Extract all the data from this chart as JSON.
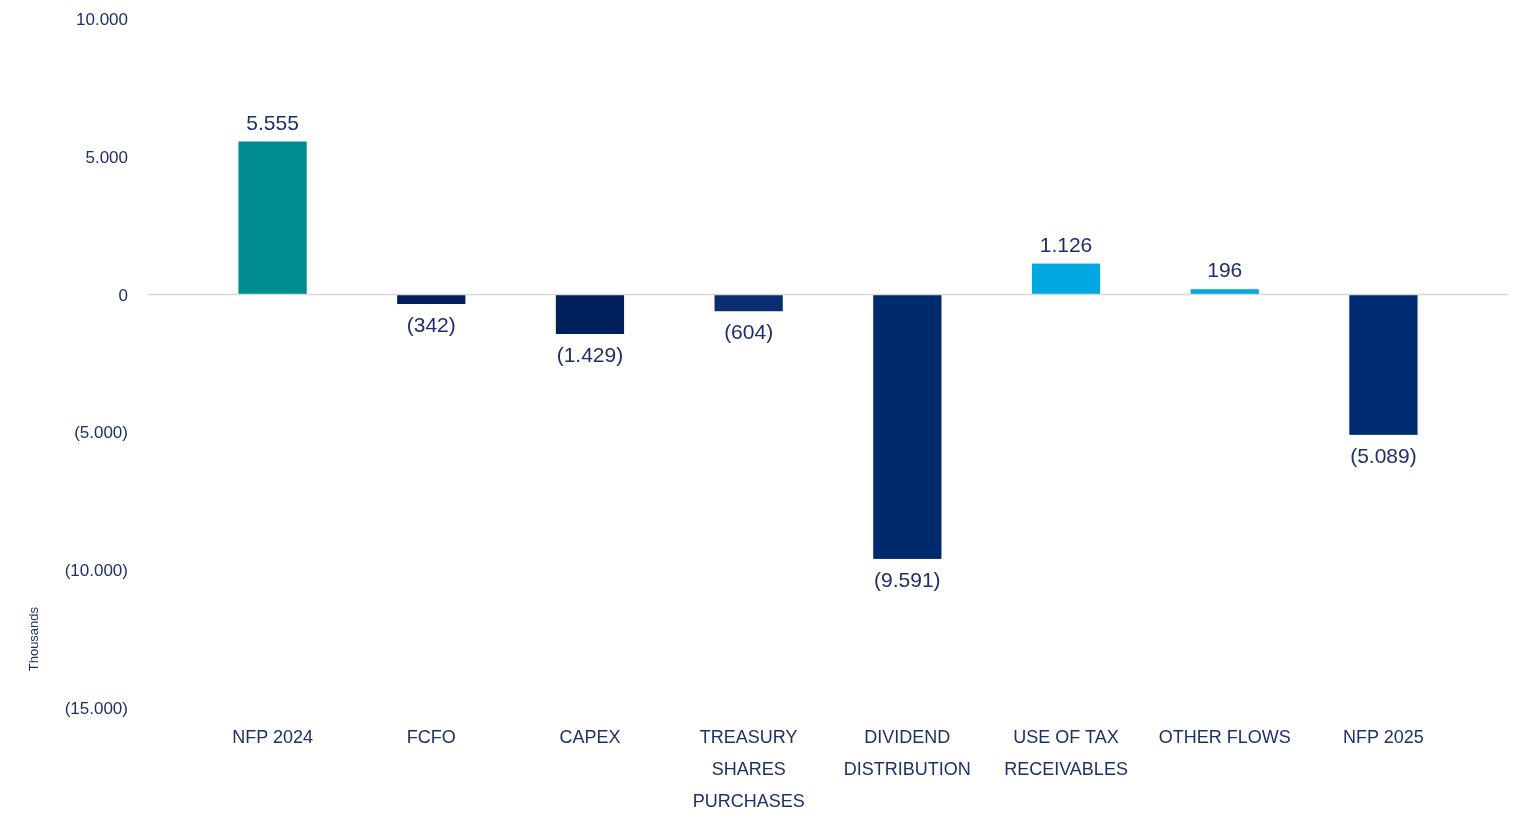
{
  "chart_data": {
    "type": "bar",
    "ylabel": "Thousands",
    "categories": [
      "NFP 2024",
      "FCFO",
      "CAPEX",
      "TREASURY SHARES PURCHASES",
      "DIVIDEND DISTRIBUTION",
      "USE OF TAX RECEIVABLES",
      "OTHER FLOWS",
      "NFP 2025"
    ],
    "values": [
      5555,
      -342,
      -1429,
      -604,
      -9591,
      1126,
      196,
      -5089
    ],
    "colors": [
      "#008b8f",
      "#00205b",
      "#00205b",
      "#0a2f6e",
      "#002a6e",
      "#00a7e1",
      "#00a7e1",
      "#002d72"
    ],
    "value_labels": [
      "5.555",
      "(342)",
      "(1.429)",
      "(604)",
      "(9.591)",
      "1.126",
      "196",
      "(5.089)"
    ],
    "ylim": [
      -15000,
      10000
    ],
    "yticks": [
      {
        "value": 10000,
        "label": "10.000"
      },
      {
        "value": 5000,
        "label": "5.000"
      },
      0,
      {
        "value": -5000,
        "label": "(5.000)"
      },
      {
        "value": -10000,
        "label": "(10.000)"
      },
      {
        "value": -15000,
        "label": "(15.000)"
      }
    ]
  }
}
